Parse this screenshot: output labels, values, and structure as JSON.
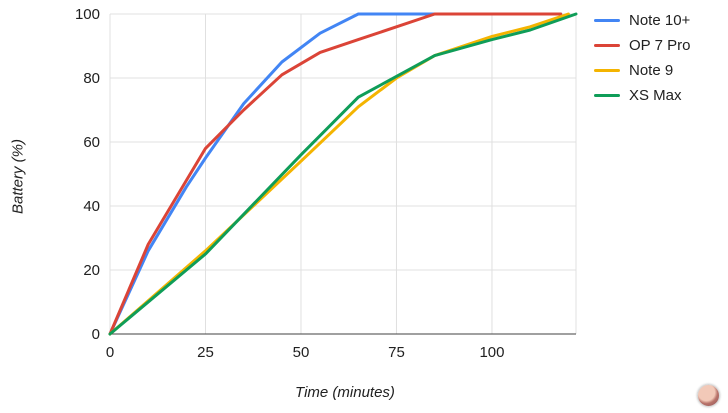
{
  "chart_data": {
    "type": "line",
    "title": "",
    "xlabel": "Time (minutes)",
    "ylabel": "Battery (%)",
    "xlim": [
      0,
      122
    ],
    "ylim": [
      0,
      100
    ],
    "x_ticks": [
      0,
      25,
      50,
      75,
      100
    ],
    "y_ticks": [
      0,
      20,
      40,
      60,
      80,
      100
    ],
    "grid": true,
    "legend_position": "right",
    "colors": {
      "grid": "#e0e0e0",
      "axis": "#424242",
      "tick_text": "#212121"
    },
    "series": [
      {
        "name": "Note 10+",
        "color": "#4285f4",
        "points": [
          [
            0,
            0
          ],
          [
            10,
            26
          ],
          [
            20,
            46
          ],
          [
            25,
            55
          ],
          [
            35,
            72
          ],
          [
            45,
            85
          ],
          [
            55,
            94
          ],
          [
            65,
            100
          ],
          [
            118,
            100
          ]
        ]
      },
      {
        "name": "OP 7 Pro",
        "color": "#db4437",
        "points": [
          [
            0,
            0
          ],
          [
            10,
            28
          ],
          [
            25,
            58
          ],
          [
            35,
            70
          ],
          [
            45,
            81
          ],
          [
            55,
            88
          ],
          [
            65,
            92
          ],
          [
            75,
            96
          ],
          [
            85,
            100
          ],
          [
            118,
            100
          ]
        ]
      },
      {
        "name": "Note 9",
        "color": "#f4b400",
        "points": [
          [
            0,
            0
          ],
          [
            25,
            26
          ],
          [
            50,
            54
          ],
          [
            65,
            71
          ],
          [
            75,
            80
          ],
          [
            85,
            87
          ],
          [
            100,
            93
          ],
          [
            110,
            96
          ],
          [
            120,
            100
          ]
        ]
      },
      {
        "name": "XS Max",
        "color": "#0f9d58",
        "points": [
          [
            0,
            0
          ],
          [
            25,
            25
          ],
          [
            50,
            56
          ],
          [
            65,
            74
          ],
          [
            85,
            87
          ],
          [
            100,
            92
          ],
          [
            110,
            95
          ],
          [
            122,
            100
          ]
        ]
      }
    ]
  }
}
